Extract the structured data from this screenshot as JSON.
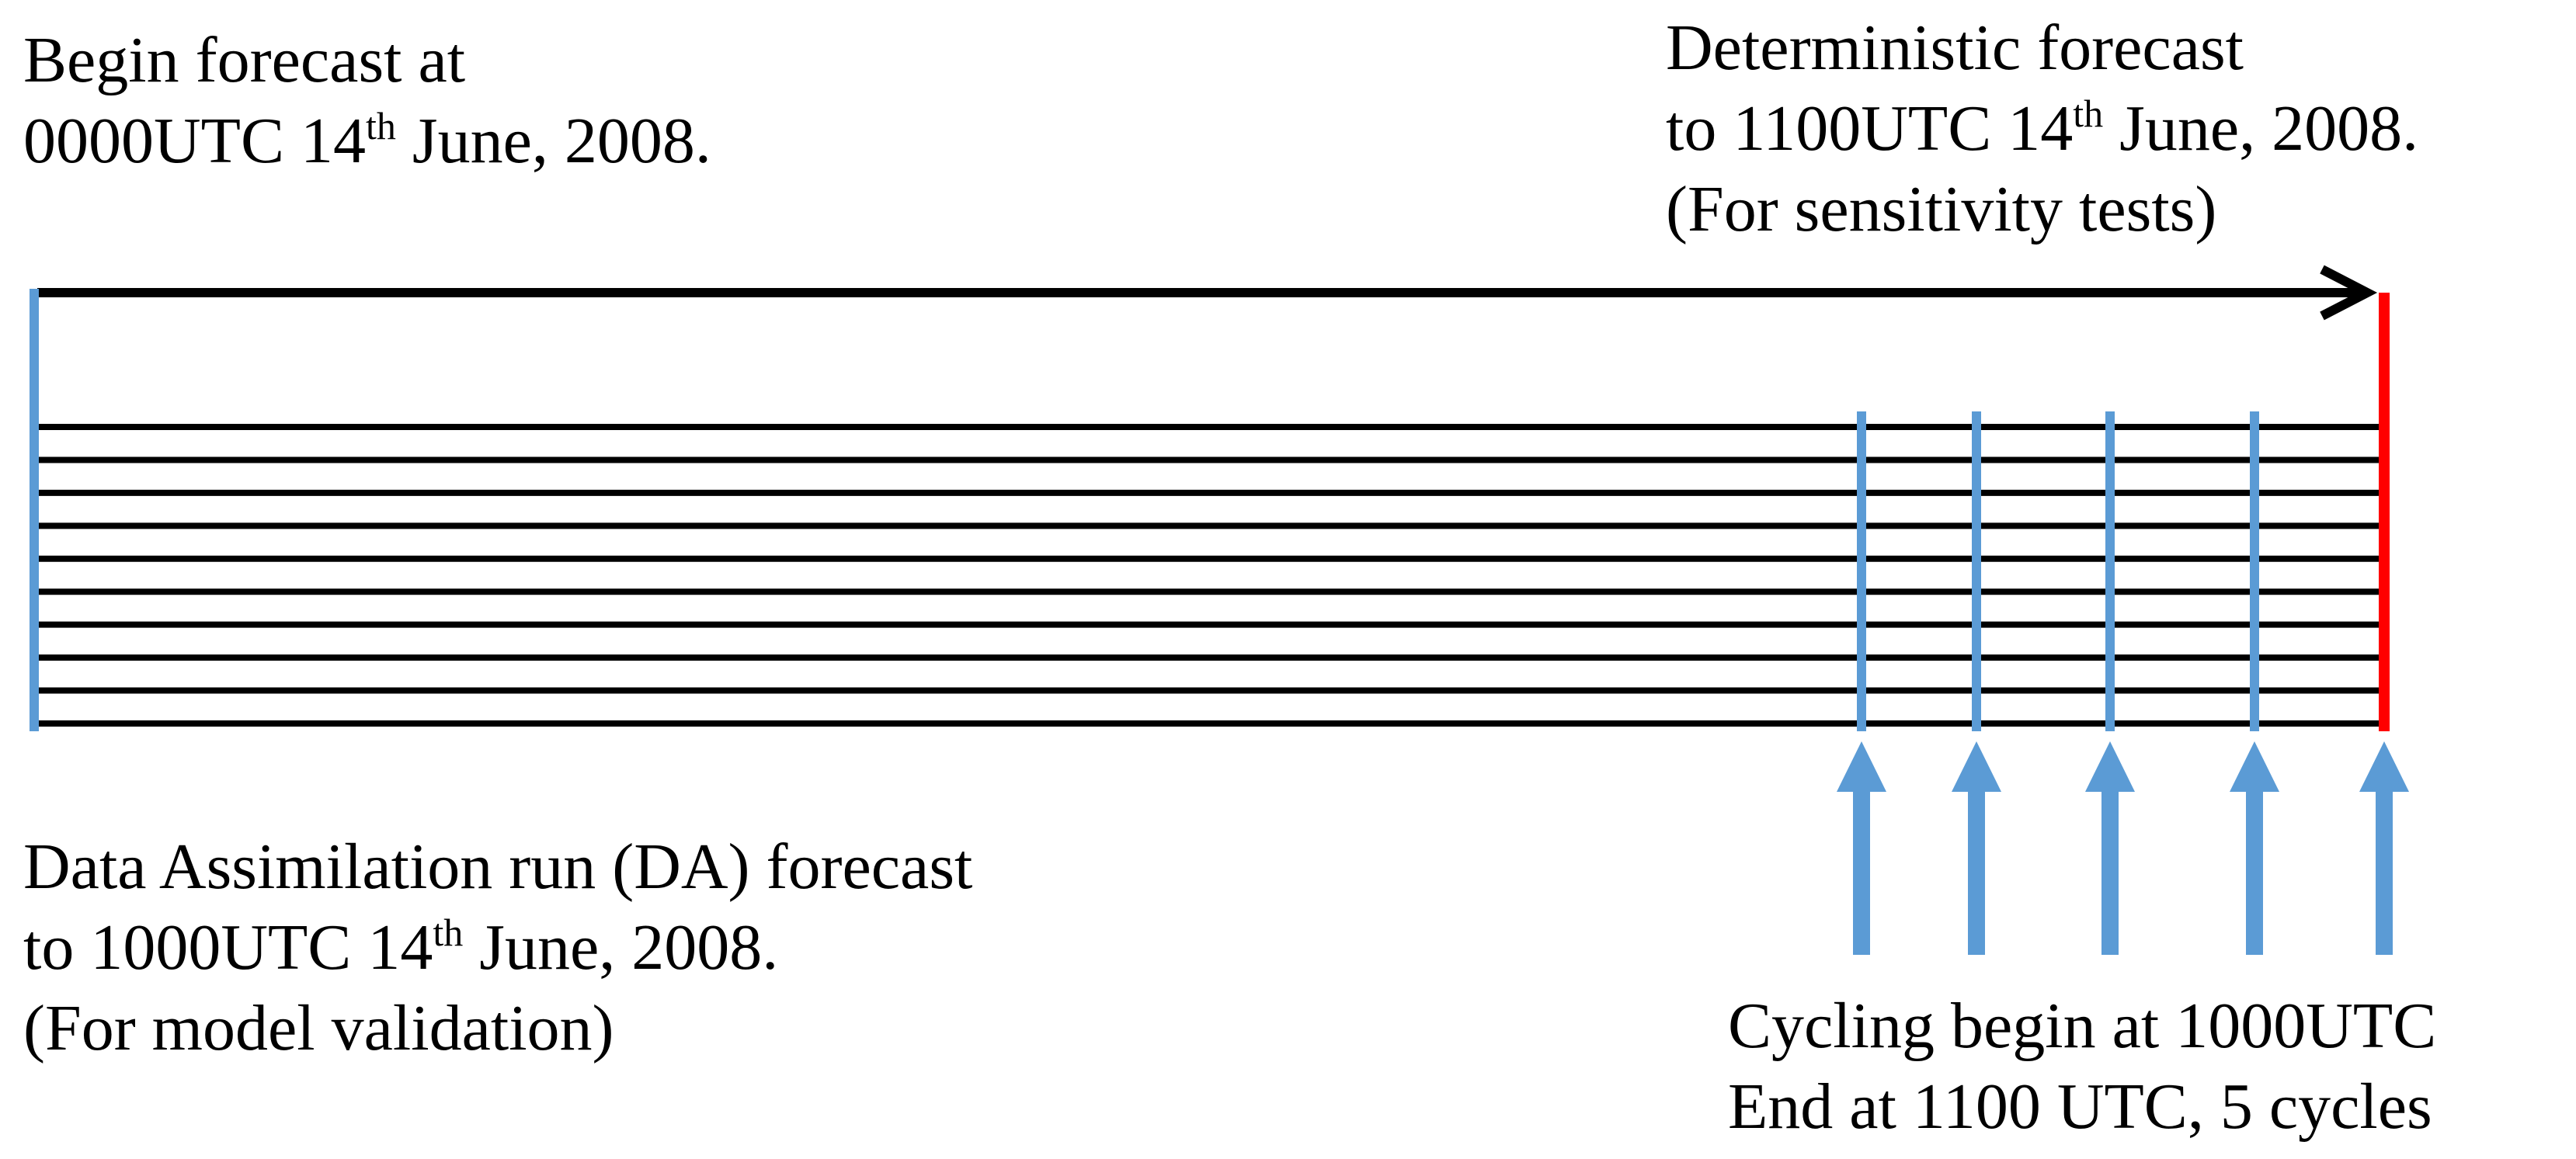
{
  "colors": {
    "timeline": "#000000",
    "start_marker": "#5b9bd5",
    "cycle_marker": "#5b9bd5",
    "end_marker": "#ff0000",
    "text": "#000000"
  },
  "begin_label": {
    "line1": "Begin forecast at",
    "line2_pre": "0000UTC 14",
    "line2_sup": "th",
    "line2_post": " June, 2008."
  },
  "deterministic_label": {
    "line1": "Deterministic forecast",
    "line2_pre": "to 1100UTC 14",
    "line2_sup": "th",
    "line2_post": " June, 2008.",
    "line3": "(For sensitivity tests)"
  },
  "da_label": {
    "line1": "Data Assimilation run (DA) forecast",
    "line2_pre": "to 1000UTC 14",
    "line2_sup": "th",
    "line2_post": " June, 2008.",
    "line3": "(For model validation)"
  },
  "cycling_label": {
    "line1": "Cycling begin at 1000UTC",
    "line2": "End at 1100 UTC, 5 cycles"
  },
  "ensemble_member_count": 10,
  "cycle_count": 5
}
